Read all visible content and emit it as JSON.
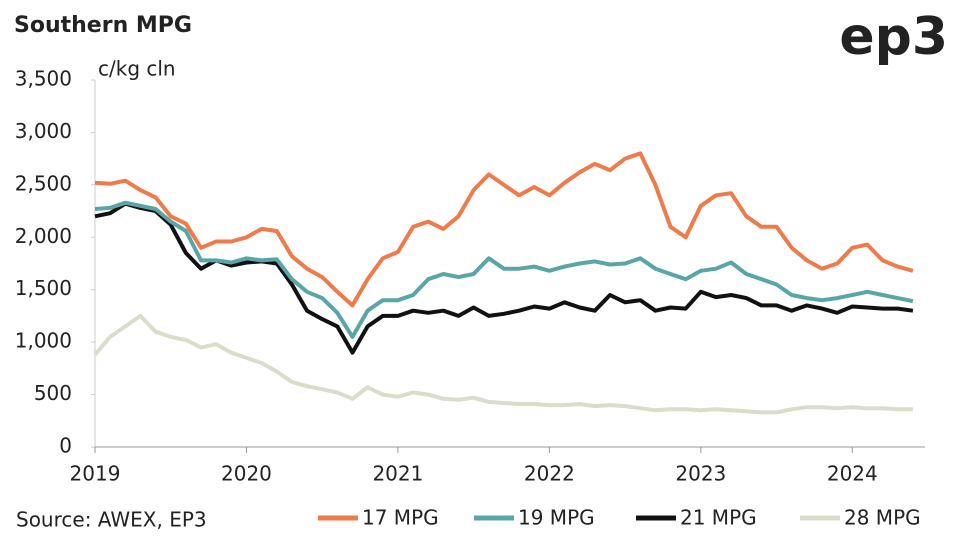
{
  "chart_data": {
    "type": "line",
    "title": "Southern MPG",
    "y_label": "c/kg cln",
    "source": "Source: AWEX, EP3",
    "logo": "ep3",
    "x": [
      2019.0,
      2019.1,
      2019.2,
      2019.3,
      2019.4,
      2019.5,
      2019.6,
      2019.7,
      2019.8,
      2019.9,
      2020.0,
      2020.1,
      2020.2,
      2020.3,
      2020.4,
      2020.5,
      2020.6,
      2020.7,
      2020.8,
      2020.9,
      2021.0,
      2021.1,
      2021.2,
      2021.3,
      2021.4,
      2021.5,
      2021.6,
      2021.7,
      2021.8,
      2021.9,
      2022.0,
      2022.1,
      2022.2,
      2022.3,
      2022.4,
      2022.5,
      2022.6,
      2022.7,
      2022.8,
      2022.9,
      2023.0,
      2023.1,
      2023.2,
      2023.3,
      2023.4,
      2023.5,
      2023.6,
      2023.7,
      2023.8,
      2023.9,
      2024.0,
      2024.1,
      2024.2,
      2024.3,
      2024.4
    ],
    "series": [
      {
        "name": "17 MPG",
        "color": "#f07b4a",
        "values": [
          2520,
          2510,
          2540,
          2450,
          2380,
          2200,
          2130,
          1900,
          1960,
          1960,
          2000,
          2080,
          2060,
          1820,
          1700,
          1620,
          1480,
          1350,
          1600,
          1800,
          1860,
          2100,
          2150,
          2080,
          2200,
          2450,
          2600,
          2500,
          2400,
          2480,
          2400,
          2520,
          2620,
          2700,
          2640,
          2750,
          2800,
          2500,
          2100,
          2000,
          2300,
          2400,
          2420,
          2200,
          2100,
          2100,
          1900,
          1780,
          1700,
          1750,
          1900,
          1930,
          1780,
          1720,
          1680
        ]
      },
      {
        "name": "19 MPG",
        "color": "#5aa5a8",
        "values": [
          2270,
          2280,
          2330,
          2300,
          2270,
          2150,
          2060,
          1780,
          1780,
          1760,
          1800,
          1780,
          1790,
          1600,
          1480,
          1420,
          1280,
          1050,
          1300,
          1400,
          1400,
          1450,
          1600,
          1650,
          1620,
          1650,
          1800,
          1700,
          1700,
          1720,
          1680,
          1720,
          1750,
          1770,
          1740,
          1750,
          1800,
          1700,
          1650,
          1600,
          1680,
          1700,
          1760,
          1650,
          1600,
          1550,
          1450,
          1420,
          1400,
          1420,
          1450,
          1480,
          1450,
          1420,
          1390
        ]
      },
      {
        "name": "21 MPG",
        "color": "#111111",
        "values": [
          2200,
          2230,
          2320,
          2280,
          2250,
          2120,
          1850,
          1700,
          1780,
          1730,
          1760,
          1770,
          1750,
          1550,
          1300,
          1220,
          1150,
          900,
          1150,
          1250,
          1250,
          1300,
          1280,
          1300,
          1250,
          1330,
          1250,
          1270,
          1300,
          1340,
          1320,
          1380,
          1330,
          1300,
          1450,
          1380,
          1400,
          1300,
          1330,
          1320,
          1480,
          1430,
          1450,
          1420,
          1350,
          1350,
          1300,
          1350,
          1320,
          1280,
          1340,
          1330,
          1320,
          1320,
          1300
        ]
      },
      {
        "name": "28 MPG",
        "color": "#dcdccb",
        "values": [
          880,
          1050,
          1150,
          1250,
          1100,
          1050,
          1020,
          950,
          980,
          900,
          850,
          800,
          720,
          620,
          580,
          550,
          520,
          460,
          570,
          500,
          480,
          520,
          500,
          460,
          450,
          470,
          430,
          420,
          410,
          410,
          400,
          400,
          410,
          390,
          400,
          390,
          370,
          350,
          360,
          360,
          350,
          360,
          350,
          340,
          330,
          330,
          360,
          380,
          380,
          370,
          380,
          370,
          370,
          360,
          360
        ]
      }
    ],
    "xlim": [
      2019,
      2024.48
    ],
    "xticks": [
      2019,
      2020,
      2021,
      2022,
      2023,
      2024
    ],
    "ylim": [
      0,
      3500
    ],
    "yticks": [
      0,
      500,
      {
        "value": 1000,
        "label": "1,000"
      },
      {
        "value": 1500,
        "label": "1,500"
      },
      {
        "value": 2000,
        "label": "2,000"
      },
      {
        "value": 2500,
        "label": "2,500"
      },
      {
        "value": 3000,
        "label": "3,000"
      },
      {
        "value": 3500,
        "label": "3,500"
      }
    ],
    "grid": false
  }
}
